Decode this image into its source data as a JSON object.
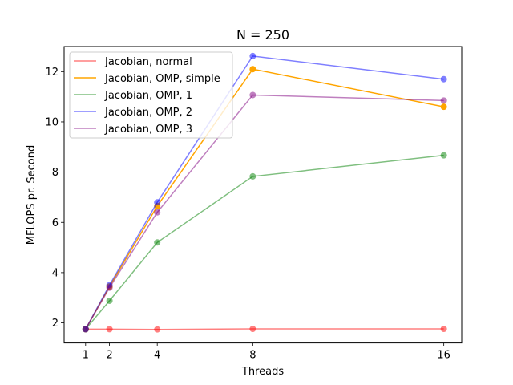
{
  "chart_data": {
    "type": "line",
    "title": "N = 250",
    "xlabel": "Threads",
    "ylabel": "MFLOPS pr. Second",
    "x": [
      1,
      2,
      4,
      8,
      16
    ],
    "xticks": [
      "1",
      "2",
      "4",
      "8",
      "16"
    ],
    "xlim": [
      0.1,
      16.75
    ],
    "ylim": [
      1.2,
      13.0
    ],
    "yticks": [
      2,
      4,
      6,
      8,
      10,
      12
    ],
    "legend_position": "upper-left",
    "grid": false,
    "series": [
      {
        "name": "Jacobian, normal",
        "color": "#ff0000",
        "values": [
          1.75,
          1.75,
          1.74,
          1.76,
          1.76
        ],
        "alpha": 0.5
      },
      {
        "name": "Jacobian, OMP, simple",
        "color": "#ffa500",
        "values": [
          1.75,
          3.45,
          6.65,
          12.1,
          10.6
        ],
        "alpha": 1.0
      },
      {
        "name": "Jacobian, OMP, 1",
        "color": "#008000",
        "values": [
          1.75,
          2.88,
          5.2,
          7.83,
          8.67
        ],
        "alpha": 0.5
      },
      {
        "name": "Jacobian, OMP, 2",
        "color": "#0000ff",
        "values": [
          1.75,
          3.5,
          6.8,
          12.62,
          11.7
        ],
        "alpha": 0.5
      },
      {
        "name": "Jacobian, OMP, 3",
        "color": "#800080",
        "values": [
          1.75,
          3.4,
          6.4,
          11.07,
          10.85
        ],
        "alpha": 0.5
      }
    ]
  }
}
